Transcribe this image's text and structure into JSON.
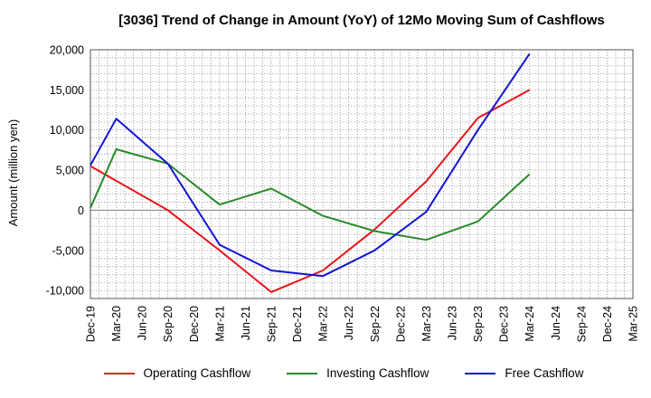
{
  "chart_data": {
    "type": "line",
    "title": "[3036]  Trend of Change in Amount (YoY) of 12Mo Moving Sum of Cashflows",
    "xlabel": "",
    "ylabel": "Amount (million yen)",
    "ylim": [
      -11000,
      20000
    ],
    "yticks": [
      -10000,
      -5000,
      0,
      5000,
      10000,
      15000,
      20000
    ],
    "ytick_labels": [
      "-10,000",
      "-5,000",
      "0",
      "5,000",
      "10,000",
      "15,000",
      "20,000"
    ],
    "categories": [
      "Dec-19",
      "Mar-20",
      "Jun-20",
      "Sep-20",
      "Dec-20",
      "Mar-21",
      "Jun-21",
      "Sep-21",
      "Dec-21",
      "Mar-22",
      "Jun-22",
      "Sep-22",
      "Dec-22",
      "Mar-23",
      "Jun-23",
      "Sep-23",
      "Dec-23",
      "Mar-24",
      "Jun-24",
      "Sep-24",
      "Dec-24",
      "Mar-25"
    ],
    "grid": true,
    "legend_position": "bottom",
    "series": [
      {
        "name": "Operating Cashflow",
        "color": "#e8141a",
        "values": [
          5500,
          null,
          null,
          0,
          null,
          -5000,
          null,
          -10200,
          null,
          -7500,
          null,
          -2400,
          null,
          3600,
          null,
          11500,
          null,
          15000,
          null,
          null,
          null,
          null
        ]
      },
      {
        "name": "Investing Cashflow",
        "color": "#2a8a2a",
        "values": [
          300,
          7600,
          null,
          5800,
          null,
          700,
          null,
          2700,
          null,
          -700,
          null,
          -2600,
          null,
          -3700,
          null,
          -1400,
          null,
          4500,
          null,
          null,
          null,
          null
        ]
      },
      {
        "name": "Free Cashflow",
        "color": "#1414d4",
        "values": [
          5600,
          11400,
          null,
          5800,
          null,
          -4300,
          null,
          -7500,
          null,
          -8200,
          null,
          -5000,
          null,
          -200,
          null,
          10000,
          null,
          19500,
          null,
          null,
          null,
          null
        ]
      }
    ]
  }
}
